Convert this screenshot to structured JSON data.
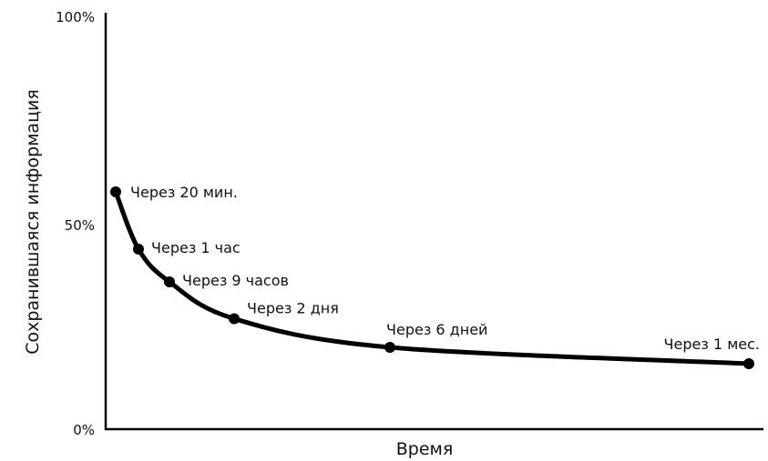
{
  "chart_data": {
    "type": "line",
    "title": "",
    "xlabel": "Время",
    "ylabel": "Сохранившаяся информация",
    "ylim": [
      0,
      100
    ],
    "yticks": [
      {
        "value": 0,
        "label": "0%"
      },
      {
        "value": 50,
        "label": "50%"
      },
      {
        "value": 100,
        "label": "100%"
      }
    ],
    "x_unit": "minutes",
    "xlim": [
      0,
      43200
    ],
    "grid": false,
    "legend": "none",
    "colors": {
      "line": "#000000",
      "text": "#111111",
      "axis": "#000000"
    },
    "points": [
      {
        "label": "Через 20 мин.",
        "x": 20,
        "y": 58
      },
      {
        "label": "Через 1 час",
        "x": 60,
        "y": 44
      },
      {
        "label": "Через 9 часов",
        "x": 540,
        "y": 36
      },
      {
        "label": "Через 2 дня",
        "x": 2880,
        "y": 27
      },
      {
        "label": "Через 6 дней",
        "x": 8640,
        "y": 20
      },
      {
        "label": "Через 1 мес.",
        "x": 43200,
        "y": 16
      }
    ]
  }
}
